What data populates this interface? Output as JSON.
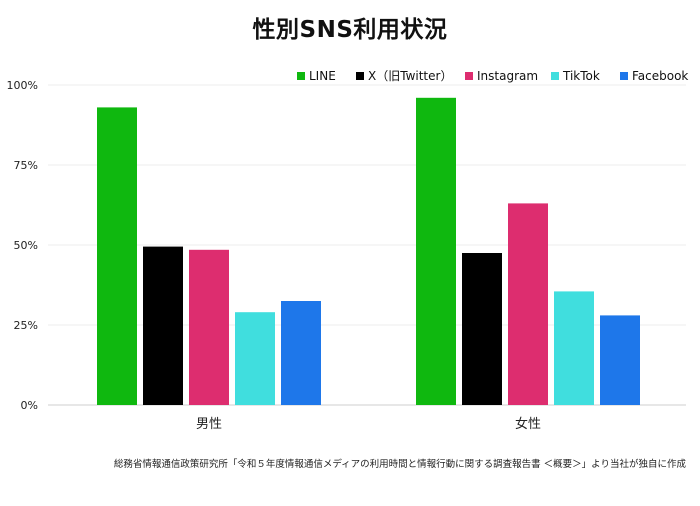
{
  "chart_data": {
    "type": "bar",
    "title": "性別SNS利用状況",
    "categories": [
      "男性",
      "女性"
    ],
    "series": [
      {
        "name": "LINE",
        "color": "#0fb80f",
        "values": [
          93,
          96
        ]
      },
      {
        "name": "X（旧Twitter）",
        "color": "#000000",
        "values": [
          49.5,
          47.5
        ]
      },
      {
        "name": "Instagram",
        "color": "#dd2d6f",
        "values": [
          48.5,
          63
        ]
      },
      {
        "name": "TikTok",
        "color": "#40dede",
        "values": [
          29,
          35.5
        ]
      },
      {
        "name": "Facebook",
        "color": "#1e77ea",
        "values": [
          32.5,
          28
        ]
      }
    ],
    "ylim": [
      0,
      100
    ],
    "yticks": [
      "0%",
      "25%",
      "50%",
      "75%",
      "100%"
    ],
    "grid": true,
    "legend_position": "top-right",
    "source": "総務省情報通信政策研究所「令和５年度情報通信メディアの利用時間と情報行動に関する調査報告書 ＜概要＞」より当社が独自に作成"
  }
}
